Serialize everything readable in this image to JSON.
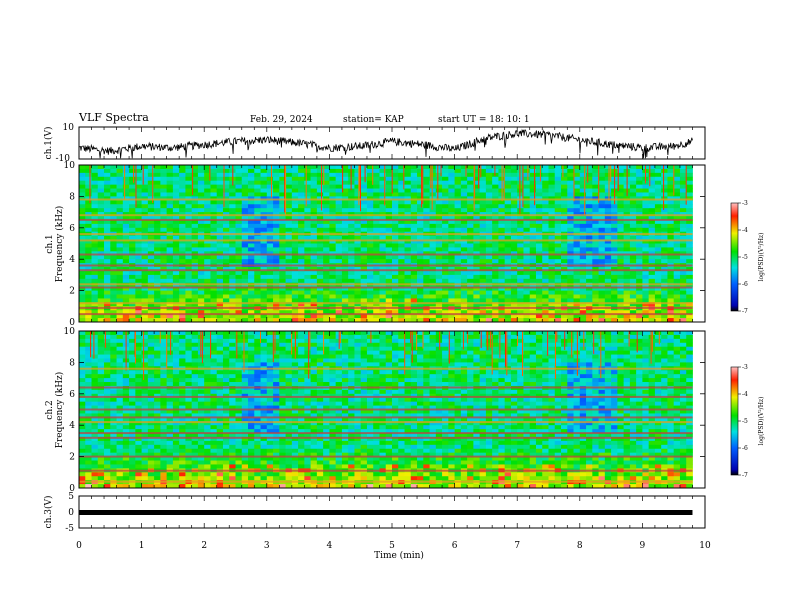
{
  "header": {
    "title": "VLF Spectra",
    "date": "Feb. 29, 2024",
    "station": "station= KAP",
    "start": "start  UT  =   18: 10: 1"
  },
  "colorbar": {
    "label": "log(PSD)(V²/Hz)",
    "ticks": [
      "-3",
      "-4",
      "-5",
      "-6",
      "-7"
    ]
  },
  "chart_data": [
    {
      "type": "line",
      "panel": "ch1-waveform",
      "ylabel": "ch.1(V)",
      "ylim": [
        -10,
        10
      ],
      "yticks": [
        "10",
        "-10"
      ],
      "x": [
        0,
        0.5,
        1,
        1.5,
        2,
        2.5,
        3,
        3.5,
        4,
        4.5,
        5,
        5.5,
        6,
        6.5,
        7,
        7.5,
        8,
        8.5,
        9,
        9.5,
        9.8
      ],
      "y": [
        -3,
        -5,
        -2,
        -3,
        -1,
        1,
        2,
        0,
        -3,
        -2,
        1,
        -1,
        -4,
        3,
        6,
        5,
        2,
        -1,
        -3,
        -2,
        1
      ]
    },
    {
      "type": "heatmap",
      "panel": "ch1-spectrogram",
      "ylabel": "ch.1 Frequency (kHz)",
      "ylim": [
        0,
        10
      ],
      "yticks": [
        "0",
        "2",
        "4",
        "6",
        "8",
        "10"
      ],
      "xlim": [
        0,
        10
      ],
      "data_extent_min": 9.8,
      "zlim": [
        -7,
        -3
      ],
      "band_freqs_khz": [
        0.5,
        0.9,
        1.2,
        2.2,
        2.4,
        3.3,
        3.6,
        4.3,
        5.2,
        5.6,
        6.5,
        6.8,
        7.8
      ]
    },
    {
      "type": "heatmap",
      "panel": "ch2-spectrogram",
      "ylabel": "ch.2 Frequency (kHz)",
      "ylim": [
        0,
        10
      ],
      "yticks": [
        "0",
        "2",
        "4",
        "6",
        "8",
        "10"
      ],
      "xlim": [
        0,
        10
      ],
      "data_extent_min": 9.8,
      "zlim": [
        -7,
        -3
      ],
      "band_freqs_khz": [
        0.4,
        1.1,
        2.0,
        3.2,
        3.5,
        4.2,
        4.5,
        5.0,
        5.8,
        6.4,
        7.6
      ]
    },
    {
      "type": "line",
      "panel": "ch3-waveform",
      "ylabel": "ch.3(V)",
      "ylim": [
        -5,
        5
      ],
      "yticks": [
        "5",
        "0",
        "-5"
      ],
      "x": [
        0,
        9.8
      ],
      "y": [
        0,
        0
      ]
    }
  ],
  "xaxis": {
    "label": "Time (min)",
    "ticks": [
      "0",
      "1",
      "2",
      "3",
      "4",
      "5",
      "6",
      "7",
      "8",
      "9",
      "10"
    ]
  }
}
